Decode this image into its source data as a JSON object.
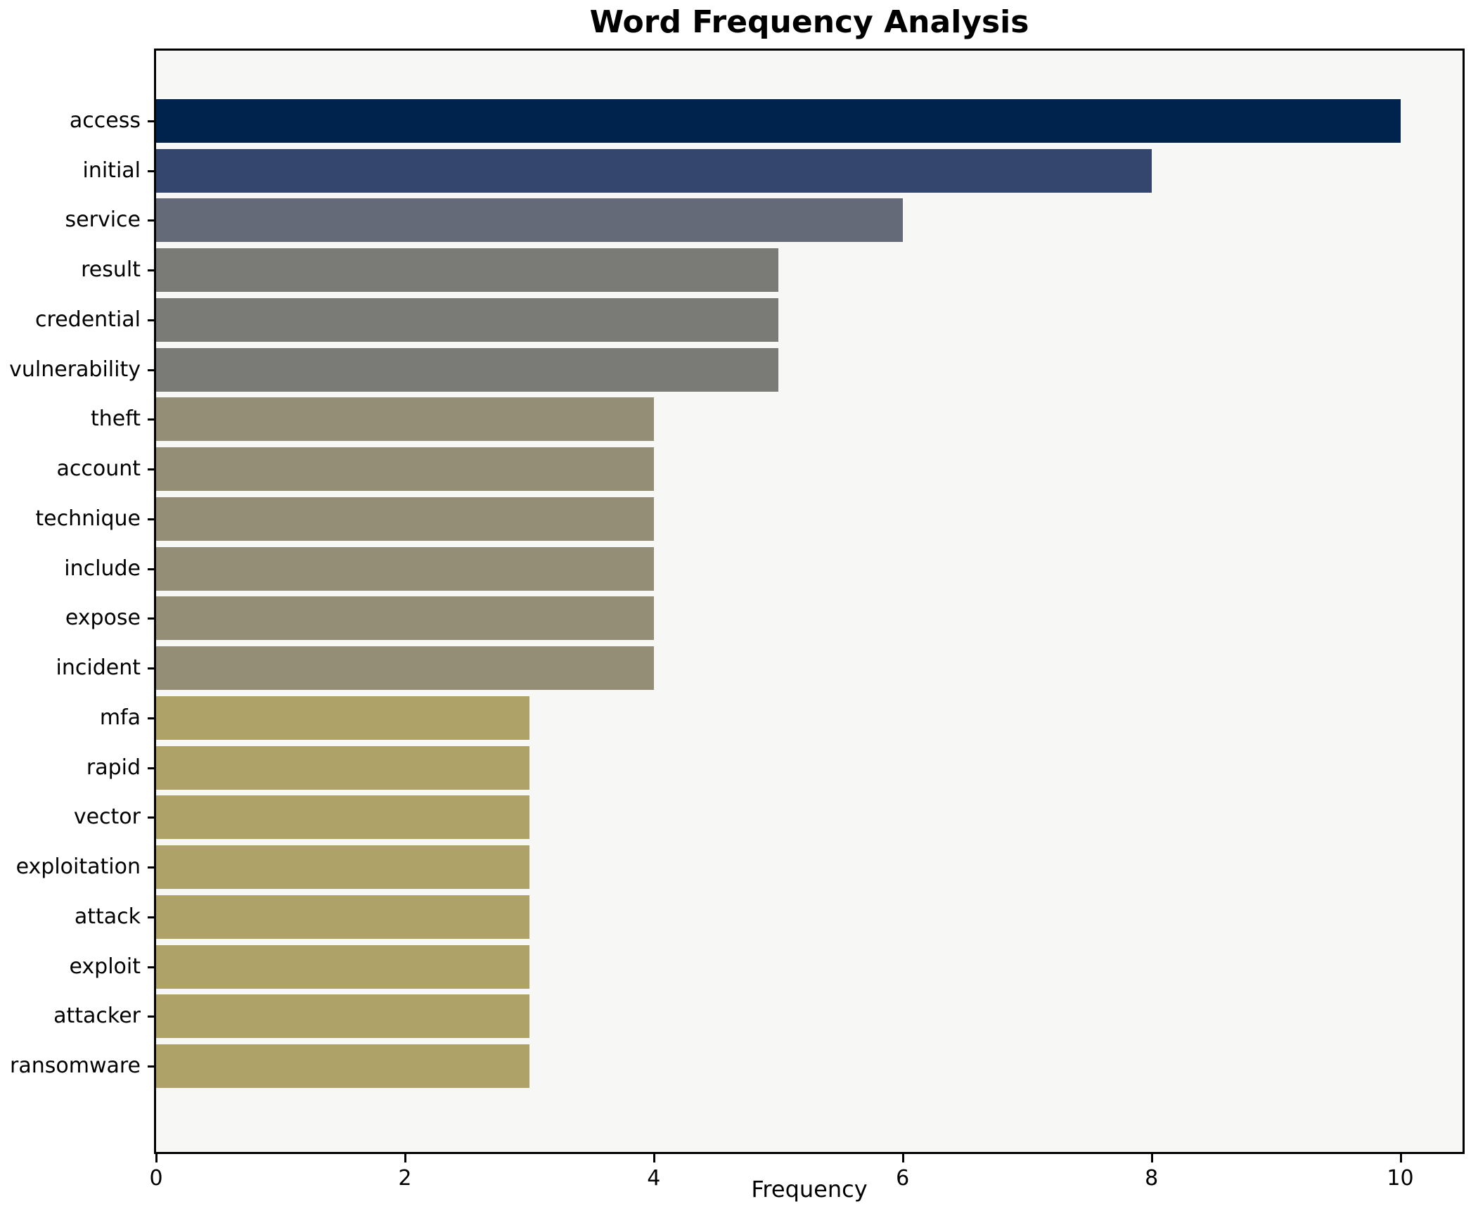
{
  "chart_data": {
    "type": "bar",
    "orientation": "horizontal",
    "title": "Word Frequency Analysis",
    "xlabel": "Frequency",
    "ylabel": "",
    "categories": [
      "access",
      "initial",
      "service",
      "result",
      "credential",
      "vulnerability",
      "theft",
      "account",
      "technique",
      "include",
      "expose",
      "incident",
      "mfa",
      "rapid",
      "vector",
      "exploitation",
      "attack",
      "exploit",
      "attacker",
      "ransomware"
    ],
    "values": [
      10,
      8,
      6,
      5,
      5,
      5,
      4,
      4,
      4,
      4,
      4,
      4,
      3,
      3,
      3,
      3,
      3,
      3,
      3,
      3
    ],
    "bar_colors": [
      "#00234e",
      "#35466e",
      "#646a78",
      "#7a7a76",
      "#7a7a76",
      "#7a7a76",
      "#938e75",
      "#938e75",
      "#938e75",
      "#938e75",
      "#938e75",
      "#938e75",
      "#aea268",
      "#aea268",
      "#aea268",
      "#aea268",
      "#aea268",
      "#aea268",
      "#aea268",
      "#aea268"
    ],
    "xlim": [
      0,
      10.5
    ],
    "xticks": [
      0,
      2,
      4,
      6,
      8,
      10
    ],
    "grid": false,
    "legend_position": "none",
    "plot_background": "#f7f7f5",
    "figure_background": "#ffffff",
    "axis_color": "#000000"
  }
}
